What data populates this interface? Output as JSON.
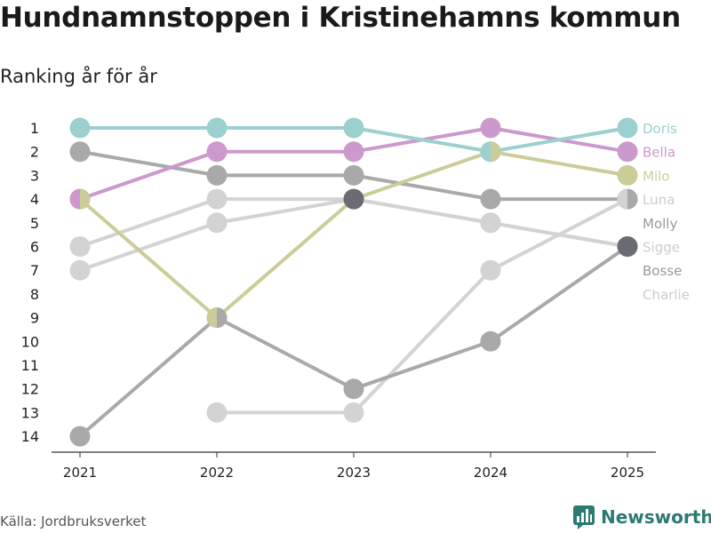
{
  "title": "Hundnamnstoppen i Kristinehamns kommun",
  "subtitle": "Ranking år för år",
  "source": "Källa: Jordbruksverket",
  "brand": "Newsworthy",
  "brand_icon": "newsworthy-logo-icon",
  "colors": {
    "doris": "#9ccfcf",
    "bella": "#cc99cc",
    "milo": "#cccc99",
    "dark": "#6b6b73",
    "mid": "#a9a9a9",
    "light": "#d3d3d3",
    "label_light": "#cccccc",
    "label_mid": "#999999",
    "brand": "#2b7a73"
  },
  "chart_data": {
    "type": "line",
    "title": "Hundnamnstoppen i Kristinehamns kommun",
    "subtitle": "Ranking år för år",
    "x": [
      "2021",
      "2022",
      "2023",
      "2024",
      "2025"
    ],
    "y_ticks": [
      "1",
      "2",
      "3",
      "4",
      "5",
      "6",
      "7",
      "8",
      "9",
      "10",
      "11",
      "12",
      "13",
      "14"
    ],
    "ylim": [
      1,
      14
    ],
    "y_inverted": true,
    "xlabel": "",
    "ylabel": "",
    "grid": false,
    "series": [
      {
        "name": "Doris",
        "values": [
          1,
          1,
          1,
          2,
          1
        ],
        "color": "#9ccfcf"
      },
      {
        "name": "Bella",
        "values": [
          4,
          2,
          2,
          1,
          2
        ],
        "color": "#cc99cc"
      },
      {
        "name": "Milo",
        "values": [
          4,
          9,
          4,
          2,
          3
        ],
        "color": "#cccc99"
      },
      {
        "name": "Luna",
        "values": [
          2,
          3,
          3,
          4,
          4
        ],
        "color": "#a9a9a9"
      },
      {
        "name": "Molly",
        "values": [
          7,
          5,
          4,
          5,
          6
        ],
        "color": "#d3d3d3"
      },
      {
        "name": "Sigge",
        "values": [
          6,
          4,
          4,
          5,
          6
        ],
        "color": "#d3d3d3"
      },
      {
        "name": "Bosse",
        "values": [
          14,
          9,
          12,
          10,
          6
        ],
        "color": "#a9a9a9"
      },
      {
        "name": "Charlie",
        "values": [
          null,
          13,
          13,
          7,
          4
        ],
        "color": "#d3d3d3"
      }
    ],
    "tie_markers": [
      {
        "x": "2021",
        "y": 4,
        "left": "#cc99cc",
        "right": "#cccc99"
      },
      {
        "x": "2022",
        "y": 9,
        "left": "#cccc99",
        "right": "#a9a9a9"
      },
      {
        "x": "2023",
        "y": 4,
        "fill": "#6b6b73"
      },
      {
        "x": "2024",
        "y": 2,
        "left": "#9ccfcf",
        "right": "#cccc99"
      },
      {
        "x": "2025",
        "y": 4,
        "left": "#d3d3d3",
        "right": "#a9a9a9"
      },
      {
        "x": "2025",
        "y": 6,
        "fill": "#6b6b73"
      }
    ],
    "legend_labels": [
      {
        "name": "Doris",
        "rank": 1,
        "color": "#9ccfcf"
      },
      {
        "name": "Bella",
        "rank": 2,
        "color": "#cc99cc"
      },
      {
        "name": "Milo",
        "rank": 3,
        "color": "#cccc99"
      },
      {
        "name": "Luna",
        "rank": 4,
        "color": "#cccccc"
      },
      {
        "name": "Molly",
        "rank": 5,
        "color": "#999999"
      },
      {
        "name": "Sigge",
        "rank": 6,
        "color": "#cccccc"
      },
      {
        "name": "Bosse",
        "rank": 7,
        "color": "#999999"
      },
      {
        "name": "Charlie",
        "rank": 8,
        "color": "#cccccc"
      }
    ]
  }
}
